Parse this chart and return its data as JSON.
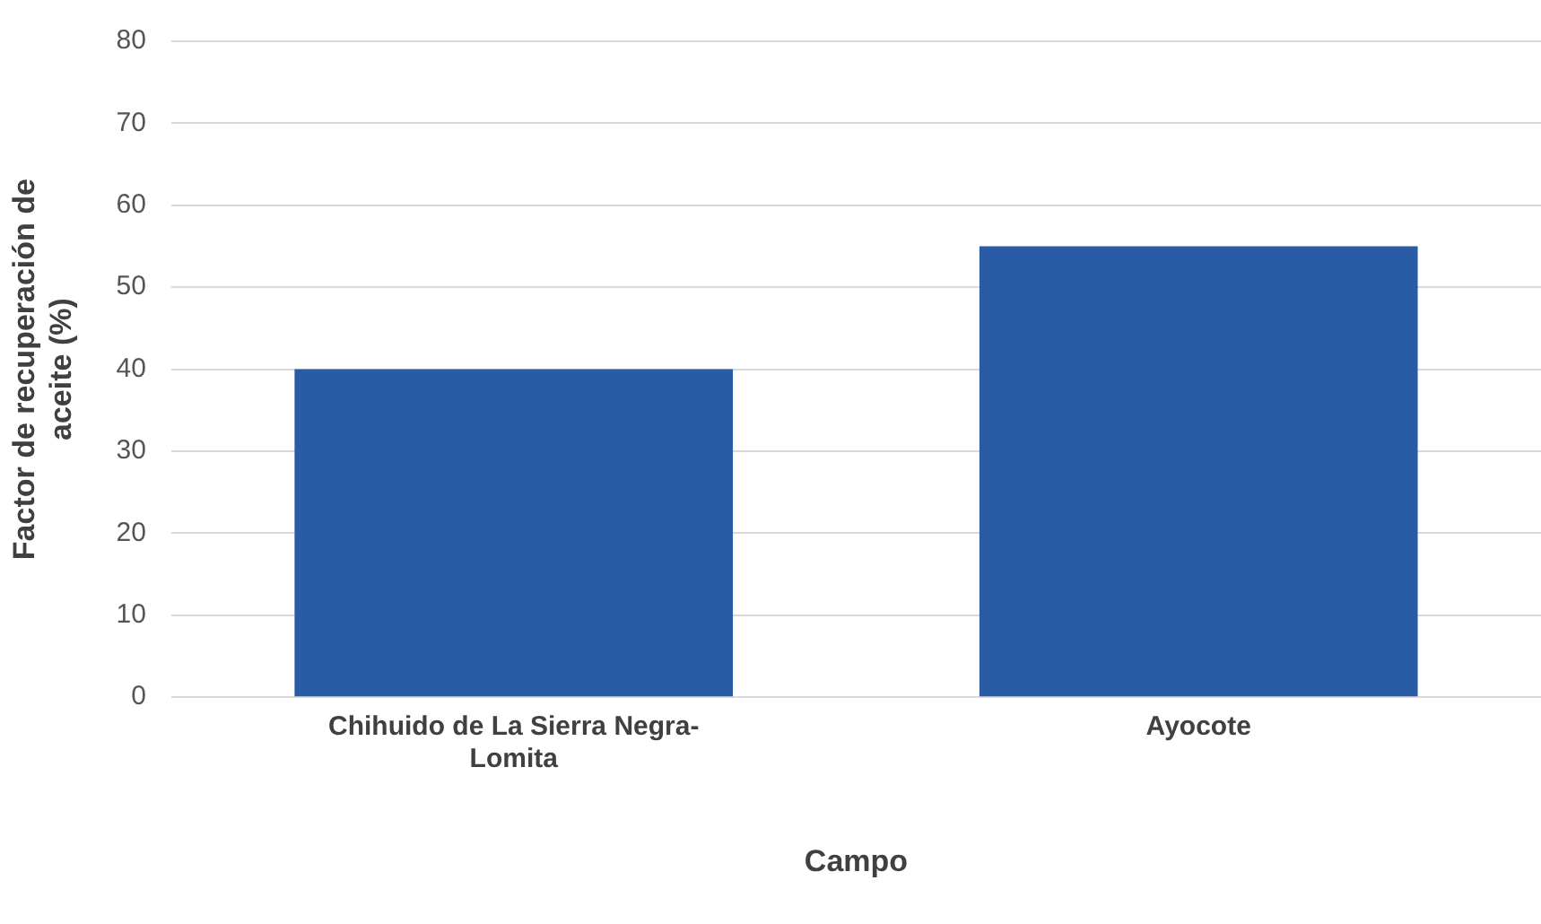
{
  "chart_data": {
    "type": "bar",
    "xlabel": "Campo",
    "ylabel": "Factor de recuperación de aceite (%)",
    "categories": [
      "Chihuido de La Sierra Negra-Lomita",
      "Ayocote"
    ],
    "values": [
      40,
      55
    ],
    "color": "#2a5ca6",
    "ylim": [
      0,
      80
    ],
    "yticks": [
      0,
      10,
      20,
      30,
      40,
      50,
      60,
      70,
      80
    ],
    "grid": "y"
  }
}
